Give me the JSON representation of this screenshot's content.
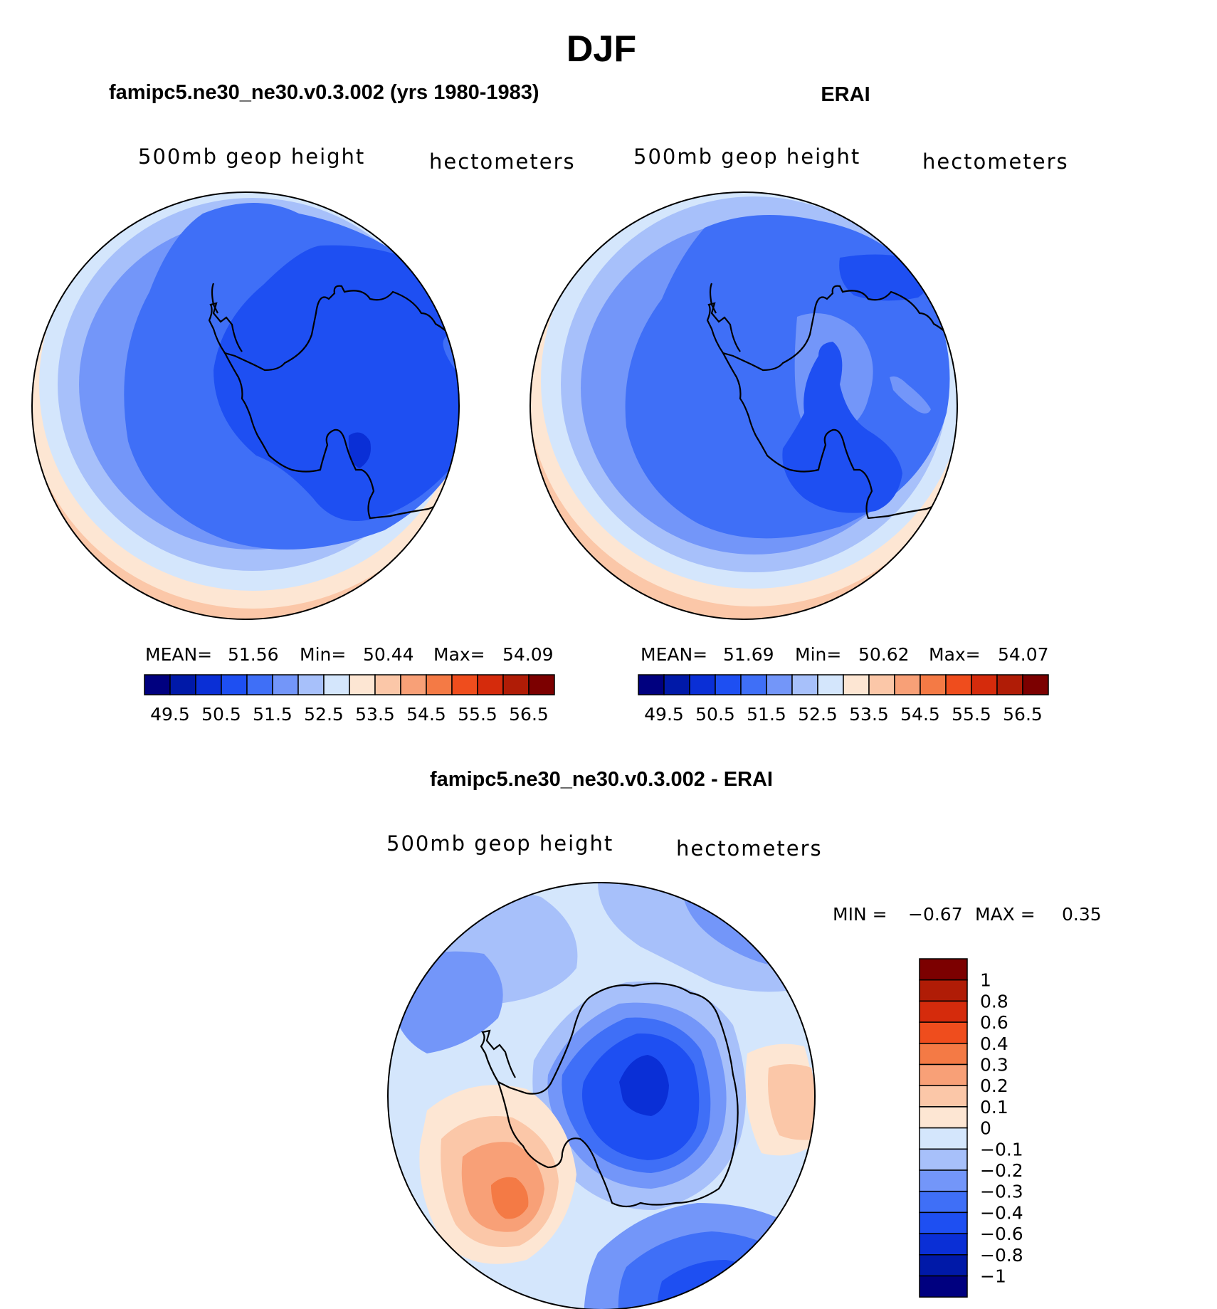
{
  "figure": {
    "title": "DJF",
    "season": "DJF"
  },
  "panels": {
    "model": {
      "title": "famipc5.ne30_ne30.v0.3.002 (yrs 1980-1983)",
      "var_label": "500mb geop height",
      "units_label": "hectometers",
      "stats": {
        "mean_label": "MEAN=",
        "mean_value": "51.56",
        "min_label": "Min=",
        "min_value": "50.44",
        "max_label": "Max=",
        "max_value": "54.09"
      }
    },
    "obs": {
      "title": "ERAI",
      "var_label": "500mb geop height",
      "units_label": "hectometers",
      "stats": {
        "mean_label": "MEAN=",
        "mean_value": "51.69",
        "min_label": "Min=",
        "min_value": "50.62",
        "max_label": "Max=",
        "max_value": "54.07"
      }
    },
    "diff": {
      "title": "famipc5.ne30_ne30.v0.3.002 - ERAI",
      "var_label": "500mb geop height",
      "units_label": "hectometers",
      "stats": {
        "min_label": "MIN =",
        "min_value": "−0.67",
        "max_label": "MAX =",
        "max_value": "0.35"
      }
    }
  },
  "chart_data": [
    {
      "type": "heatmap",
      "projection": "south-polar-stereographic",
      "name": "model",
      "title": "famipc5.ne30_ne30.v0.3.002 (yrs 1980-1983)",
      "variable": "500mb geop height",
      "units": "hectometers",
      "mean": 51.56,
      "min": 50.44,
      "max": 54.09,
      "contour_levels": [
        49.5,
        50,
        50.5,
        51,
        51.5,
        52,
        52.5,
        53,
        53.5,
        54,
        54.5,
        55,
        55.5,
        56,
        56.5
      ],
      "colorbar_ticks": [
        "49.5",
        "50.5",
        "51.5",
        "52.5",
        "53.5",
        "54.5",
        "55.5",
        "56.5"
      ]
    },
    {
      "type": "heatmap",
      "projection": "south-polar-stereographic",
      "name": "obs",
      "title": "ERAI",
      "variable": "500mb geop height",
      "units": "hectometers",
      "mean": 51.69,
      "min": 50.62,
      "max": 54.07,
      "contour_levels": [
        49.5,
        50,
        50.5,
        51,
        51.5,
        52,
        52.5,
        53,
        53.5,
        54,
        54.5,
        55,
        55.5,
        56,
        56.5
      ],
      "colorbar_ticks": [
        "49.5",
        "50.5",
        "51.5",
        "52.5",
        "53.5",
        "54.5",
        "55.5",
        "56.5"
      ]
    },
    {
      "type": "heatmap",
      "projection": "south-polar-stereographic",
      "name": "diff",
      "title": "famipc5.ne30_ne30.v0.3.002 - ERAI",
      "variable": "500mb geop height",
      "units": "hectometers",
      "min": -0.67,
      "max": 0.35,
      "contour_levels": [
        -1,
        -0.8,
        -0.6,
        -0.4,
        -0.3,
        -0.2,
        -0.1,
        0,
        0.1,
        0.2,
        0.3,
        0.4,
        0.6,
        0.8,
        1
      ],
      "colorbar_ticks": [
        "1",
        "0.8",
        "0.6",
        "0.4",
        "0.3",
        "0.2",
        "0.1",
        "0",
        "−0.1",
        "−0.2",
        "−0.3",
        "−0.4",
        "−0.6",
        "−0.8",
        "−1"
      ]
    }
  ],
  "colors": {
    "palette": [
      "#00007f",
      "#0019a8",
      "#0a2fd6",
      "#1e4ff2",
      "#3f6ff7",
      "#7396f9",
      "#a7c0fa",
      "#d4e6fc",
      "#fde6d3",
      "#fbc7a8",
      "#f8a077",
      "#f47a45",
      "#ef4d1d",
      "#d52b0c",
      "#b01c06",
      "#7c0000"
    ],
    "coastline": "#000000"
  }
}
